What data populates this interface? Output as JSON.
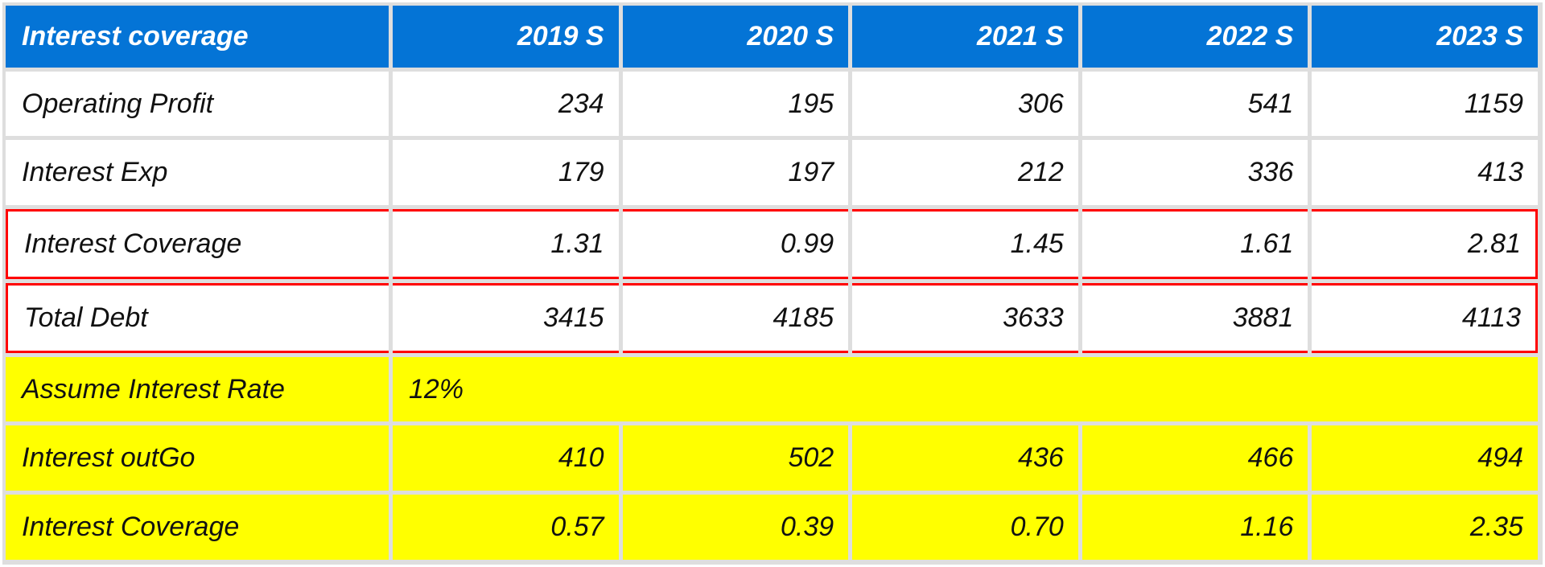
{
  "table": {
    "title": "Interest coverage",
    "columns": [
      "2019 S",
      "2020 S",
      "2021 S",
      "2022 S",
      "2023 S"
    ],
    "rows": [
      {
        "label": "Operating Profit",
        "values": [
          "234",
          "195",
          "306",
          "541",
          "1159"
        ]
      },
      {
        "label": "Interest Exp",
        "values": [
          "179",
          "197",
          "212",
          "336",
          "413"
        ]
      },
      {
        "label": "Interest Coverage",
        "values": [
          "1.31",
          "0.99",
          "1.45",
          "1.61",
          "2.81"
        ]
      },
      {
        "label": "Total Debt",
        "values": [
          "3415",
          "4185",
          "3633",
          "3881",
          "4113"
        ]
      }
    ],
    "assumption": {
      "label": "Assume Interest Rate",
      "value": "12%"
    },
    "assumed_rows": [
      {
        "label": "Interest outGo",
        "values": [
          "410",
          "502",
          "436",
          "466",
          "494"
        ]
      },
      {
        "label": "Interest Coverage",
        "values": [
          "0.57",
          "0.39",
          "0.70",
          "1.16",
          "2.35"
        ]
      }
    ]
  },
  "colors": {
    "header": "#0474d6",
    "highlight": "#ffff00",
    "outline": "#ff0000"
  }
}
